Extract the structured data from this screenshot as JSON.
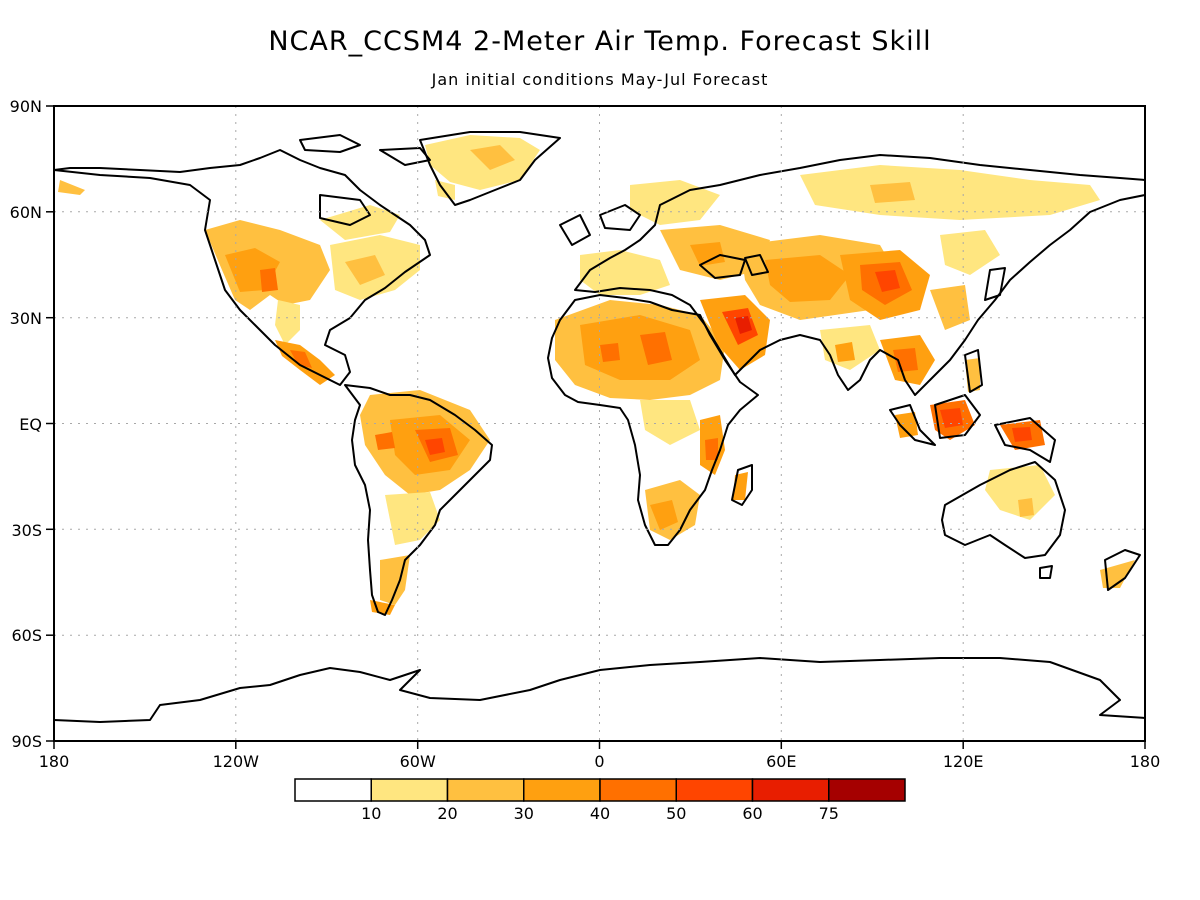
{
  "title": "NCAR_CCSM4 2-Meter Air Temp. Forecast Skill",
  "subtitle": "Jan initial conditions  May-Jul Forecast",
  "lat_labels": [
    "90N",
    "60N",
    "30N",
    "EQ",
    "30S",
    "60S",
    "90S"
  ],
  "lon_labels": [
    "180",
    "120W",
    "60W",
    "0",
    "60E",
    "120E",
    "180"
  ],
  "colorbar": {
    "bins": [
      {
        "color": "#ffffff",
        "label": ""
      },
      {
        "color": "#ffe680",
        "label": "10"
      },
      {
        "color": "#ffc040",
        "label": "20"
      },
      {
        "color": "#ffa010",
        "label": "30"
      },
      {
        "color": "#ff7000",
        "label": "40"
      },
      {
        "color": "#ff4500",
        "label": "50"
      },
      {
        "color": "#e81e00",
        "label": "60"
      },
      {
        "color": "#a50000",
        "label": "75"
      }
    ]
  },
  "skill_regions": [
    {
      "region": "western-north-america",
      "level": 3
    },
    {
      "region": "central-north-america",
      "level": 2
    },
    {
      "region": "mexico",
      "level": 4
    },
    {
      "region": "amazon",
      "level": 4
    },
    {
      "region": "patagonia",
      "level": 2
    },
    {
      "region": "sahara",
      "level": 3
    },
    {
      "region": "arabia",
      "level": 5
    },
    {
      "region": "central-asia",
      "level": 4
    },
    {
      "region": "tibet",
      "level": 5
    },
    {
      "region": "siberia",
      "level": 1
    },
    {
      "region": "southern-africa",
      "level": 3
    },
    {
      "region": "east-africa",
      "level": 4
    },
    {
      "region": "indochina",
      "level": 4
    },
    {
      "region": "maritime-continent",
      "level": 5
    },
    {
      "region": "australia",
      "level": 1
    },
    {
      "region": "greenland",
      "level": 1
    }
  ]
}
